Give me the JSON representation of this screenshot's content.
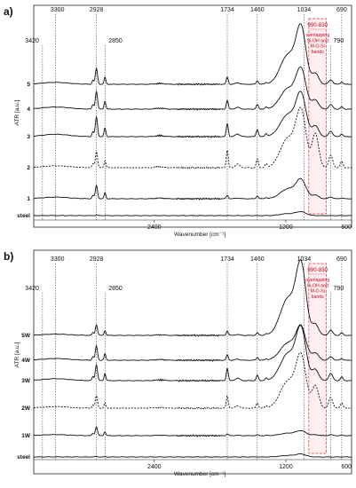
{
  "chart_data": [
    {
      "type": "line",
      "panel_label": "a)",
      "xlabel": "Wavenumber [cm⁻¹]",
      "ylabel": "ATR [a.u.]",
      "x_axis": "reversed",
      "xlim": [
        3500,
        600
      ],
      "x_ticks": [
        2400,
        1200,
        600
      ],
      "peak_labels": [
        {
          "x": 3300,
          "label": "3300",
          "row": "top"
        },
        {
          "x": 3420,
          "label": "3420",
          "row": "low"
        },
        {
          "x": 2928,
          "label": "2928",
          "row": "top"
        },
        {
          "x": 2850,
          "label": "2850",
          "row": "low"
        },
        {
          "x": 1734,
          "label": "1734",
          "row": "top"
        },
        {
          "x": 1460,
          "label": "1460",
          "row": "top"
        },
        {
          "x": 1034,
          "label": "1034",
          "row": "top"
        },
        {
          "x": 790,
          "label": "790",
          "row": "low"
        },
        {
          "x": 690,
          "label": "690",
          "row": "top"
        }
      ],
      "highlight": {
        "x_from": 990,
        "x_to": 830,
        "title": "990-830",
        "text": [
          "overlapping",
          "Si-OH and",
          "M-O-Si",
          "bands"
        ]
      },
      "series": [
        {
          "name": "steel",
          "style": "solid",
          "offset": 0,
          "peaks": {
            "p2928": 0.5,
            "p1734": 0,
            "p1460": 0,
            "p1100": 4,
            "p950": 0,
            "p790": 0
          }
        },
        {
          "name": "1",
          "style": "solid",
          "offset": 1,
          "peaks": {
            "p2928": 15,
            "p1734": 4,
            "p1460": 3,
            "p1100": 20,
            "p950": 4,
            "p790": 2
          }
        },
        {
          "name": "2",
          "style": "dashed",
          "offset": 2,
          "peaks": {
            "p2928": 18,
            "p1734": 20,
            "p1460": 10,
            "p1100": 60,
            "p950": 38,
            "p790": 14
          }
        },
        {
          "name": "3",
          "style": "solid",
          "offset": 3,
          "peaks": {
            "p2928": 22,
            "p1734": 15,
            "p1460": 8,
            "p1100": 45,
            "p950": 12,
            "p790": 6
          }
        },
        {
          "name": "4",
          "style": "solid",
          "offset": 4,
          "peaks": {
            "p2928": 20,
            "p1734": 10,
            "p1460": 5,
            "p1100": 42,
            "p950": 10,
            "p790": 5
          }
        },
        {
          "name": "5",
          "style": "solid",
          "offset": 5,
          "peaks": {
            "p2928": 18,
            "p1734": 8,
            "p1460": 4,
            "p1100": 60,
            "p950": 12,
            "p790": 5
          }
        }
      ]
    },
    {
      "type": "line",
      "panel_label": "b)",
      "xlabel": "Wavenumber [cm⁻¹]",
      "ylabel": "ATR [a.u.]",
      "x_axis": "reversed",
      "xlim": [
        3500,
        600
      ],
      "x_ticks": [
        2400,
        1200,
        600
      ],
      "peak_labels": [
        {
          "x": 3300,
          "label": "3300",
          "row": "top"
        },
        {
          "x": 3420,
          "label": "3420",
          "row": "low"
        },
        {
          "x": 2928,
          "label": "2928",
          "row": "top"
        },
        {
          "x": 2850,
          "label": "2850",
          "row": "low"
        },
        {
          "x": 1734,
          "label": "1734",
          "row": "top"
        },
        {
          "x": 1460,
          "label": "1460",
          "row": "top"
        },
        {
          "x": 1034,
          "label": "1034",
          "row": "top"
        },
        {
          "x": 790,
          "label": "790",
          "row": "low"
        },
        {
          "x": 690,
          "label": "690",
          "row": "top"
        }
      ],
      "highlight": {
        "x_from": 990,
        "x_to": 830,
        "title": "990-830",
        "text": [
          "overlapping",
          "Si-OH and",
          "M-O-Si",
          "bands"
        ]
      },
      "series": [
        {
          "name": "steel",
          "style": "solid",
          "offset": 0,
          "peaks": {
            "p2928": 0.5,
            "p1734": 0,
            "p1460": 0,
            "p1100": 3,
            "p950": 0,
            "p790": 0
          }
        },
        {
          "name": "1W",
          "style": "solid",
          "offset": 1,
          "peaks": {
            "p2928": 10,
            "p1734": 2,
            "p1460": 1,
            "p1100": 5,
            "p950": 1,
            "p790": 1
          }
        },
        {
          "name": "2W",
          "style": "dashed",
          "offset": 2,
          "peaks": {
            "p2928": 14,
            "p1734": 14,
            "p1460": 6,
            "p1100": 55,
            "p950": 25,
            "p790": 12
          }
        },
        {
          "name": "3W",
          "style": "solid",
          "offset": 3,
          "peaks": {
            "p2928": 18,
            "p1734": 14,
            "p1460": 6,
            "p1100": 55,
            "p950": 12,
            "p790": 8
          }
        },
        {
          "name": "4W",
          "style": "solid",
          "offset": 4,
          "peaks": {
            "p2928": 16,
            "p1734": 6,
            "p1460": 3,
            "p1100": 35,
            "p950": 8,
            "p790": 4
          }
        },
        {
          "name": "5W",
          "style": "solid",
          "offset": 5,
          "peaks": {
            "p2928": 12,
            "p1734": 5,
            "p1460": 3,
            "p1100": 75,
            "p950": 12,
            "p790": 6
          }
        }
      ]
    }
  ]
}
